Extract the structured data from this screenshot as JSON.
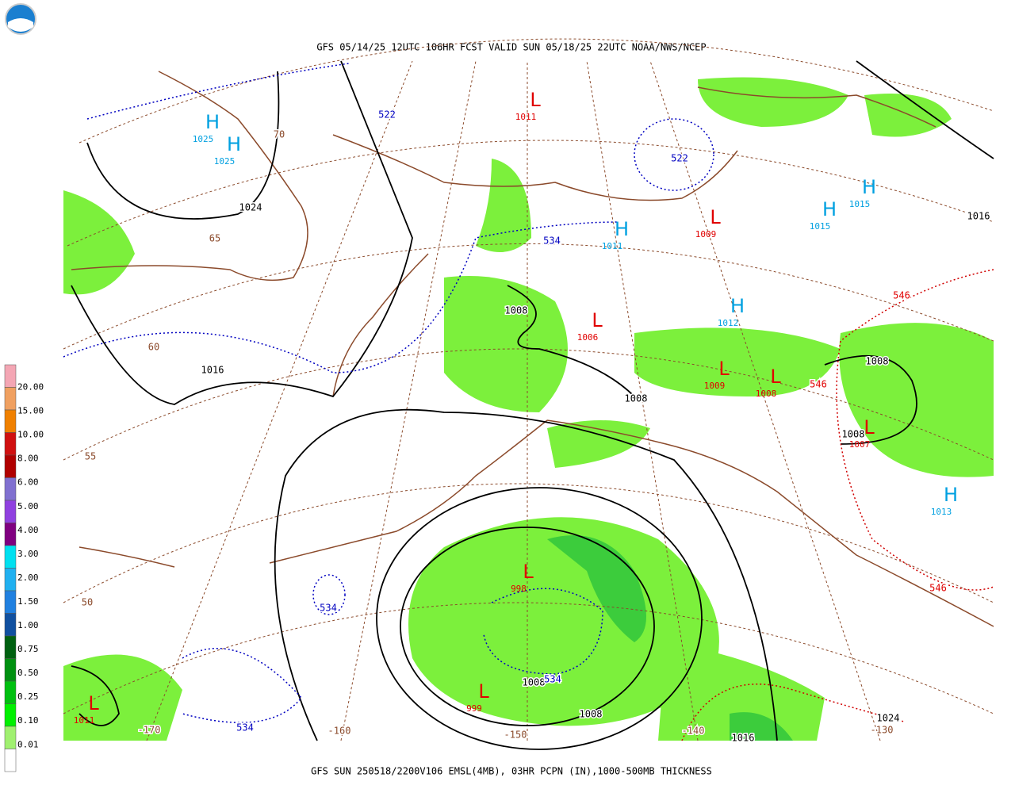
{
  "header": {
    "title": "GFS 05/14/25 12UTC 106HR FCST VALID SUN 05/18/25 22UTC NOAA/NWS/NCEP"
  },
  "footer": {
    "caption": "GFS SUN 250518/2200V106 EMSL(4MB), 03HR PCPN (IN),1000-500MB THICKNESS"
  },
  "legend": {
    "labels": [
      "20.00",
      "15.00",
      "10.00",
      "8.00",
      "6.00",
      "5.00",
      "4.00",
      "3.00",
      "2.00",
      "1.50",
      "1.00",
      "0.75",
      "0.50",
      "0.25",
      "0.10",
      "0.01"
    ]
  },
  "centers": [
    {
      "symbol": "H",
      "pressure": "1025"
    },
    {
      "symbol": "H",
      "pressure": "1025"
    },
    {
      "symbol": "L",
      "pressure": "1011"
    },
    {
      "symbol": "H",
      "pressure": "1011"
    },
    {
      "symbol": "L",
      "pressure": "1009"
    },
    {
      "symbol": "H",
      "pressure": "1015"
    },
    {
      "symbol": "H",
      "pressure": "1015"
    },
    {
      "symbol": "L",
      "pressure": "1006"
    },
    {
      "symbol": "H",
      "pressure": "1012"
    },
    {
      "symbol": "L",
      "pressure": "1009"
    },
    {
      "symbol": "L",
      "pressure": "1008"
    },
    {
      "symbol": "L",
      "pressure": "1007"
    },
    {
      "symbol": "H",
      "pressure": "1013"
    },
    {
      "symbol": "L",
      "pressure": "998"
    },
    {
      "symbol": "L",
      "pressure": "999"
    },
    {
      "symbol": "L",
      "pressure": "1011"
    }
  ],
  "isobar_labels": [
    "1024",
    "1008",
    "1016",
    "1008",
    "1008",
    "1008",
    "1008",
    "1008",
    "1016",
    "1024",
    "1016"
  ],
  "thickness_labels": [
    "522",
    "522",
    "534",
    "534",
    "534",
    "534",
    "546",
    "546",
    "546"
  ],
  "grid_labels": [
    "70",
    "65",
    "60",
    "55",
    "50",
    "-170",
    "-160",
    "-150",
    "-140",
    "-130"
  ]
}
